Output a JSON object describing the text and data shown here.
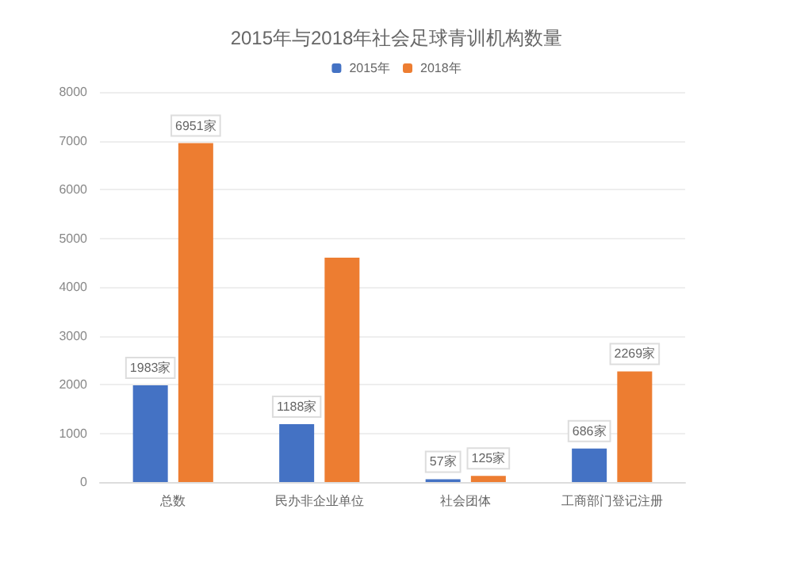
{
  "chart_data": {
    "type": "bar",
    "title": "2015年与2018年社会足球青训机构数量",
    "categories": [
      "总数",
      "民办非企业单位",
      "社会团体",
      "工商部门登记注册"
    ],
    "series": [
      {
        "name": "2015年",
        "color": "#4472c4",
        "values": [
          1983,
          1188,
          57,
          686
        ],
        "value_labels": [
          "1983家",
          "1188家",
          "57家",
          "686家"
        ]
      },
      {
        "name": "2018年",
        "color": "#ed7d31",
        "values": [
          6951,
          4600,
          125,
          2269
        ],
        "value_labels": [
          "6951家",
          null,
          "125家",
          "2269家"
        ]
      }
    ],
    "ylim": [
      0,
      8000
    ],
    "yticks": [
      0,
      1000,
      2000,
      3000,
      4000,
      5000,
      6000,
      7000,
      8000
    ],
    "grid": "y",
    "legend": "top"
  }
}
